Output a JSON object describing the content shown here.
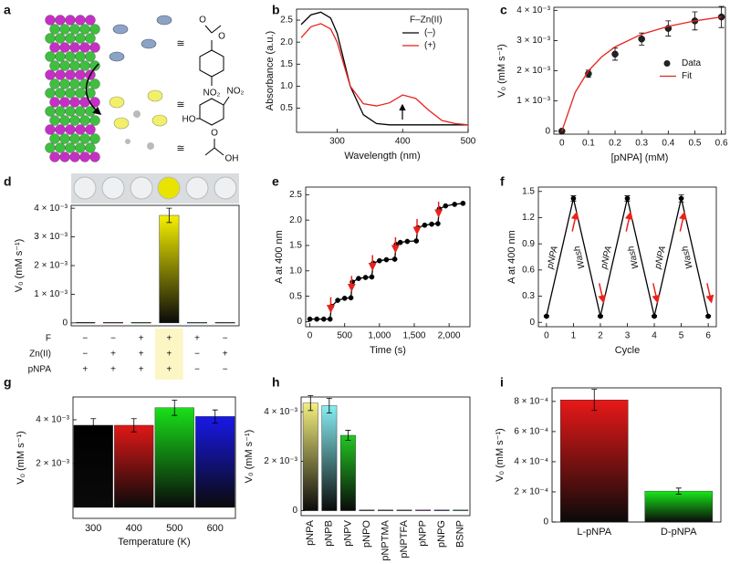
{
  "panel_a": {
    "label": "a",
    "atom_labels": [
      "O",
      "O",
      "NO₂",
      "NO₂",
      "HO",
      "O",
      "OH"
    ],
    "relations": [
      "≅",
      "≅",
      "≅"
    ]
  },
  "chart_data": [
    {
      "type": "line",
      "panel": "b",
      "xlabel": "Wavelength (nm)",
      "ylabel": "Absorbance (a.u.)",
      "x": [
        245,
        260,
        275,
        290,
        300,
        310,
        320,
        340,
        360,
        380,
        400,
        420,
        440,
        460,
        480,
        500
      ],
      "xlim": [
        238,
        500
      ],
      "xticks": [
        300,
        400,
        500
      ],
      "ylim": [
        -0.05,
        2.75
      ],
      "yticks": [
        0.5,
        {
          "value": 1,
          "label": "1.0"
        },
        1.5,
        {
          "value": 2,
          "label": "2.0"
        },
        2.5
      ],
      "legend": "upper right",
      "legend_title": "F–Zn(II)",
      "series": [
        {
          "name": "(–)",
          "color": "#000000",
          "values": [
            2.4,
            2.62,
            2.68,
            2.55,
            2.2,
            1.6,
            1.0,
            0.35,
            0.15,
            0.12,
            0.12,
            0.12,
            0.12,
            0.12,
            0.12,
            0.12
          ]
        },
        {
          "name": "(+)",
          "color": "#e8221c",
          "values": [
            2.1,
            2.35,
            2.42,
            2.3,
            2.0,
            1.5,
            1.0,
            0.6,
            0.55,
            0.62,
            0.8,
            0.72,
            0.45,
            0.22,
            0.15,
            0.12
          ]
        }
      ]
    },
    {
      "type": "scatter",
      "panel": "c",
      "xlabel": "[pNPA] (mM)",
      "ylabel": "V₀ (mM s⁻¹)",
      "xlim": [
        -0.03,
        0.615
      ],
      "xticks": [
        0,
        0.1,
        0.2,
        0.3,
        0.4,
        0.5,
        0.6
      ],
      "ylim": [
        -0.0001,
        0.0041
      ],
      "yticks": [
        0,
        {
          "value": 0.001,
          "label": "1 × 10⁻³"
        },
        {
          "value": 0.002,
          "label": "2 × 10⁻³"
        },
        {
          "value": 0.003,
          "label": "3 × 10⁻³"
        },
        {
          "value": 0.004,
          "label": "4 × 10⁻³"
        }
      ],
      "legend": "center right",
      "series": [
        {
          "name": "Data",
          "color": "#222222",
          "mode": "markers",
          "x": [
            0,
            0.1,
            0.2,
            0.3,
            0.4,
            0.5,
            0.6
          ],
          "values": [
            0,
            0.0019,
            0.00255,
            0.00305,
            0.0034,
            0.00365,
            0.00378
          ],
          "errors": [
            5e-05,
            0.00012,
            0.0002,
            0.0002,
            0.00025,
            0.0003,
            0.00035
          ]
        },
        {
          "name": "Fit",
          "color": "#e8221c",
          "mode": "lines",
          "x": [
            0,
            0.05,
            0.1,
            0.15,
            0.2,
            0.3,
            0.4,
            0.5,
            0.6
          ],
          "values": [
            0,
            0.00128,
            0.002,
            0.00246,
            0.00279,
            0.00321,
            0.00347,
            0.00365,
            0.00378
          ]
        }
      ]
    },
    {
      "type": "bar",
      "panel": "d",
      "ylabel": "V₀ (mM s⁻¹)",
      "categories": [
        null,
        null,
        null,
        null,
        null,
        null
      ],
      "values": [
        2e-05,
        2e-05,
        2e-05,
        0.00375,
        2e-05,
        2e-05
      ],
      "errors": [
        0,
        0,
        0,
        0.00025,
        0,
        0
      ],
      "colors": [
        "#000000",
        "#d8141f",
        "#1fc21f",
        "#f5f000",
        "#22d3e0",
        "#c22bd1"
      ],
      "ylim": [
        -0.0001,
        0.0041
      ],
      "yticks": [
        0,
        {
          "value": 0.001,
          "label": "1 × 10⁻³"
        },
        {
          "value": 0.002,
          "label": "2 × 10⁻³"
        },
        {
          "value": 0.003,
          "label": "3 × 10⁻³"
        },
        {
          "value": 0.004,
          "label": "4 × 10⁻³"
        }
      ],
      "highlight": 3,
      "table": {
        "rows": [
          {
            "label": "F",
            "cells": [
              "−",
              "−",
              "+",
              "+",
              "+",
              "−"
            ]
          },
          {
            "label": "Zn(II)",
            "cells": [
              "−",
              "+",
              "+",
              "+",
              "−",
              "+"
            ]
          },
          {
            "label": "pNPA",
            "cells": [
              "+",
              "+",
              "+",
              "+",
              "−",
              "−"
            ]
          }
        ]
      }
    },
    {
      "type": "line",
      "panel": "e",
      "xlabel": "Time (s)",
      "ylabel": "A at 400 nm",
      "x": [
        0,
        100,
        200,
        290,
        310,
        400,
        500,
        590,
        610,
        700,
        800,
        890,
        910,
        1000,
        1100,
        1220,
        1240,
        1300,
        1400,
        1530,
        1550,
        1650,
        1750,
        1840,
        1860,
        1950,
        2080,
        2200
      ],
      "xlim": [
        -60,
        2300
      ],
      "xticks": [
        0,
        500,
        {
          "value": 1000,
          "label": "1,000"
        },
        {
          "value": 1500,
          "label": "1,500"
        },
        {
          "value": 2000,
          "label": "2,000"
        }
      ],
      "ylim": [
        -0.1,
        2.65
      ],
      "yticks": [
        0,
        0.5,
        {
          "value": 1,
          "label": "1.0"
        },
        1.5,
        {
          "value": 2,
          "label": "2.0"
        },
        2.5
      ],
      "arrows_x": [
        300,
        600,
        900,
        1230,
        1540,
        1850
      ],
      "series": [
        {
          "color": "#000000",
          "mode": "lines+markers",
          "values": [
            0.05,
            0.05,
            0.05,
            0.05,
            0.3,
            0.42,
            0.46,
            0.47,
            0.78,
            0.85,
            0.87,
            0.88,
            1.15,
            1.2,
            1.22,
            1.23,
            1.52,
            1.56,
            1.58,
            1.59,
            1.85,
            1.9,
            1.92,
            1.93,
            2.22,
            2.28,
            2.31,
            2.33
          ]
        }
      ]
    },
    {
      "type": "line",
      "panel": "f",
      "xlabel": "Cycle",
      "ylabel": "A at 400 nm",
      "x": [
        0,
        1,
        2,
        3,
        4,
        5,
        6
      ],
      "xlim": [
        -0.3,
        6.3
      ],
      "xticks": [
        0,
        1,
        2,
        3,
        4,
        5,
        6
      ],
      "ylim": [
        -0.05,
        1.55
      ],
      "yticks": [
        0,
        0.3,
        0.6,
        0.9,
        1.2,
        1.5
      ],
      "segment_labels": [
        "pNPA",
        "Wash",
        "pNPA",
        "Wash",
        "pNPA",
        "Wash"
      ],
      "series": [
        {
          "color": "#000000",
          "mode": "lines+markers",
          "values": [
            0.07,
            1.42,
            0.07,
            1.42,
            0.07,
            1.42,
            0.07
          ],
          "errors": [
            0.01,
            0.03,
            0.01,
            0.03,
            0.01,
            0.04,
            0.01
          ]
        }
      ]
    },
    {
      "type": "bar",
      "panel": "g",
      "xlabel": "Temperature (K)",
      "ylabel": "V₀ (mM s⁻¹)",
      "categories": [
        "300",
        "400",
        "500",
        "600"
      ],
      "values": [
        0.00375,
        0.00375,
        0.00455,
        0.00415
      ],
      "errors": [
        0.0003,
        0.0003,
        0.00035,
        0.0003
      ],
      "colors": [
        "#000000",
        "#e01818",
        "#18e018",
        "#1818e8"
      ],
      "ylim": [
        -0.0005,
        0.00504
      ],
      "yticks": [
        {
          "value": 0.002,
          "label": "2 × 10⁻³"
        },
        {
          "value": 0.004,
          "label": "4 × 10⁻³"
        }
      ]
    },
    {
      "type": "bar",
      "panel": "h",
      "ylabel": "V₀ (mM s⁻¹)",
      "categories": [
        "pNPA",
        "pNPB",
        "pNPV",
        "pNPO",
        "pNPTMA",
        "pNPTFA",
        "pNPP",
        "pNPG",
        "BSNP"
      ],
      "values": [
        0.00435,
        0.00425,
        0.00305,
        3e-05,
        3e-05,
        3e-05,
        3e-05,
        3e-05,
        3e-05
      ],
      "errors": [
        0.0003,
        0.0003,
        0.0002,
        0,
        0,
        0,
        0,
        0,
        0
      ],
      "colors": [
        "#f4ef7e",
        "#86eef2",
        "#22c722",
        "#333333",
        "#333333",
        "#555555",
        "#d63bd6",
        "#3333cc",
        "#22c0d0"
      ],
      "rotate_labels": true,
      "ylim": [
        -0.0002,
        0.0046
      ],
      "yticks": [
        0,
        {
          "value": 0.002,
          "label": "2 × 10⁻³"
        },
        {
          "value": 0.004,
          "label": "4 × 10⁻³"
        }
      ]
    },
    {
      "type": "bar",
      "panel": "i",
      "ylabel": "V₀ (mM s⁻¹)",
      "categories": [
        "L-pNPA",
        "D-pNPA"
      ],
      "values": [
        0.00081,
        0.000205
      ],
      "errors": [
        7e-05,
        2e-05
      ],
      "colors": [
        "#e81818",
        "#18e818"
      ],
      "ylim": [
        0,
        0.00089
      ],
      "yticks": [
        0,
        {
          "value": 0.0002,
          "label": "2 × 10⁻⁴"
        },
        {
          "value": 0.0004,
          "label": "4 × 10⁻⁴"
        },
        {
          "value": 0.0006,
          "label": "6 × 10⁻⁴"
        },
        {
          "value": 0.0008,
          "label": "8 × 10⁻⁴"
        }
      ]
    }
  ]
}
